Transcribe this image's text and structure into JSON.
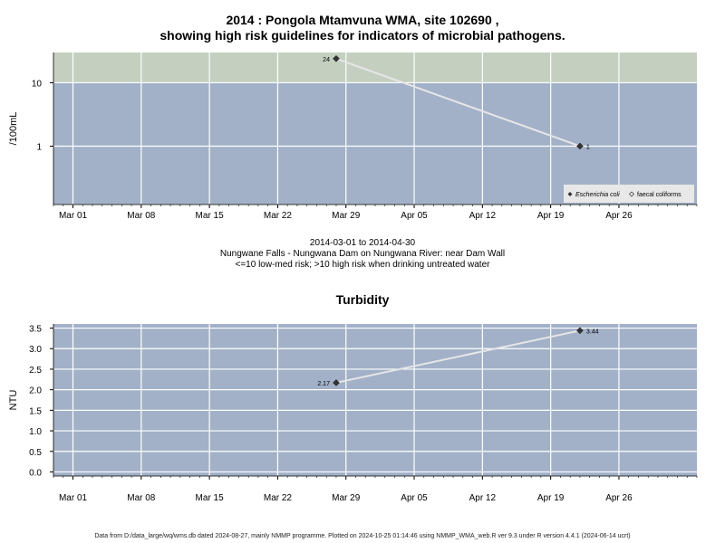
{
  "colors": {
    "panel_bg": "#a2b1c8",
    "high_risk_band": "#c4cfc0",
    "grid": "#ffffff",
    "series_line": "#e6e6e6",
    "point": "#333333",
    "legend_bg": "#e8e8e8"
  },
  "page": {
    "title_line1": "2014 : Pongola Mtamvuna WMA, site 102690 ,",
    "title_line2": "showing high risk guidelines for indicators of microbial pathogens.",
    "date_range": "2014-03-01 to 2014-04-30",
    "site_description": "Nungwane Falls - Nungwana Dam on Nungwana River: near Dam Wall",
    "risk_note": "<=10 low-med risk; >10 high risk when drinking untreated water",
    "turbidity_title": "Turbidity",
    "footer": "Data from D:/data_large/wq/wms.db dated 2024-08-27, mainly NMMP programme. Plotted on 2024-10-25 01:14:46 using NMMP_WMA_web.R ver 9.3 under R version 4.4.1 (2024-06-14 ucrt)"
  },
  "chart_data": [
    {
      "type": "line",
      "ylabel": "/100mL",
      "y_scale": "log",
      "y_ticks": [
        1,
        10
      ],
      "y_tick_labels": [
        "1",
        "10"
      ],
      "high_risk_threshold": 10,
      "x_tick_labels": [
        "Mar 01",
        "Mar 08",
        "Mar 15",
        "Mar 22",
        "Mar 29",
        "Apr 05",
        "Apr 12",
        "Apr 19",
        "Apr 26"
      ],
      "x_tick_dates": [
        "2014-03-01",
        "2014-03-08",
        "2014-03-15",
        "2014-03-22",
        "2014-03-29",
        "2014-04-05",
        "2014-04-12",
        "2014-04-19",
        "2014-04-26"
      ],
      "xlim": [
        "2014-02-27",
        "2014-05-04"
      ],
      "ylim": [
        0.12,
        30
      ],
      "series": [
        {
          "name": "Escherichia coli",
          "x": [
            "2014-03-28",
            "2014-04-22"
          ],
          "values": [
            24,
            1
          ],
          "point_labels": [
            "24",
            "1"
          ]
        }
      ],
      "legend": {
        "position": "bottom-right",
        "entries": [
          "Escherichia coli",
          "faecal coliforms"
        ]
      },
      "grid": true
    },
    {
      "type": "line",
      "title": "Turbidity",
      "ylabel": "NTU",
      "y_ticks": [
        0,
        0.5,
        1,
        1.5,
        2,
        2.5,
        3,
        3.5
      ],
      "y_tick_labels": [
        "0.0",
        "0.5",
        "1.0",
        "1.5",
        "2.0",
        "2.5",
        "3.0",
        "3.5"
      ],
      "x_tick_labels": [
        "Mar 01",
        "Mar 08",
        "Mar 15",
        "Mar 22",
        "Mar 29",
        "Apr 05",
        "Apr 12",
        "Apr 19",
        "Apr 26"
      ],
      "x_tick_dates": [
        "2014-03-01",
        "2014-03-08",
        "2014-03-15",
        "2014-03-22",
        "2014-03-29",
        "2014-04-05",
        "2014-04-12",
        "2014-04-19",
        "2014-04-26"
      ],
      "xlim": [
        "2014-02-27",
        "2014-05-04"
      ],
      "ylim": [
        -0.1,
        3.6
      ],
      "series": [
        {
          "name": "Turbidity",
          "x": [
            "2014-03-28",
            "2014-04-22"
          ],
          "values": [
            2.17,
            3.44
          ],
          "point_labels": [
            "2.17",
            "3.44"
          ]
        }
      ],
      "grid": true
    }
  ]
}
